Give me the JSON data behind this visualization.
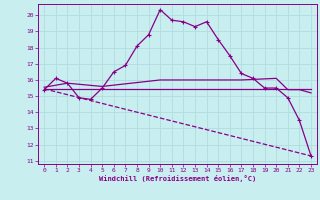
{
  "background_color": "#c8eef0",
  "grid_color": "#b0dde0",
  "line_color": "#880088",
  "xlabel": "Windchill (Refroidissement éolien,°C)",
  "xlim": [
    -0.5,
    23.5
  ],
  "ylim": [
    10.8,
    20.7
  ],
  "yticks": [
    11,
    12,
    13,
    14,
    15,
    16,
    17,
    18,
    19,
    20
  ],
  "xticks": [
    0,
    1,
    2,
    3,
    4,
    5,
    6,
    7,
    8,
    9,
    10,
    11,
    12,
    13,
    14,
    15,
    16,
    17,
    18,
    19,
    20,
    21,
    22,
    23
  ],
  "line1_x": [
    0,
    1,
    2,
    3,
    4,
    5,
    6,
    7,
    8,
    9,
    10,
    11,
    12,
    13,
    14,
    15,
    16,
    17,
    18,
    19,
    20,
    21,
    22,
    23
  ],
  "line1_y": [
    15.4,
    16.1,
    15.8,
    14.9,
    14.8,
    15.5,
    16.5,
    16.9,
    18.1,
    18.8,
    20.35,
    19.7,
    19.6,
    19.3,
    19.6,
    18.5,
    17.5,
    16.4,
    16.1,
    15.5,
    15.5,
    14.9,
    13.5,
    11.3
  ],
  "line2_x": [
    0,
    2,
    5,
    10,
    15,
    17,
    20,
    21,
    22,
    23
  ],
  "line2_y": [
    15.55,
    15.8,
    15.6,
    16.0,
    16.0,
    16.0,
    16.1,
    15.4,
    15.4,
    15.2
  ],
  "line3_x": [
    0,
    23
  ],
  "line3_y": [
    15.45,
    15.45
  ],
  "line4_x": [
    0,
    23
  ],
  "line4_y": [
    15.45,
    11.3
  ]
}
